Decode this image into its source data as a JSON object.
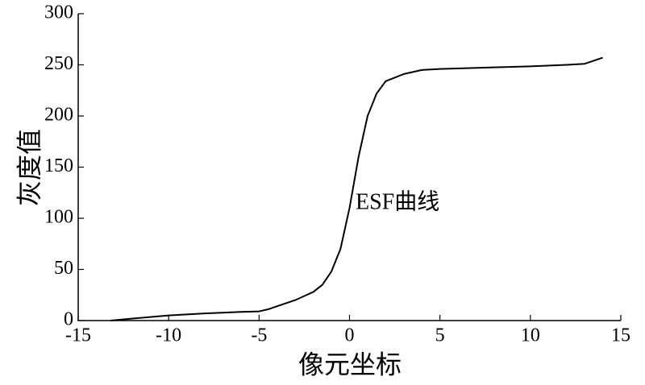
{
  "chart_data": {
    "type": "line",
    "xlabel": "像元坐标",
    "ylabel": "灰度值",
    "annotation": "ESF曲线",
    "x": [
      -13.2,
      -12,
      -10,
      -8,
      -6,
      -5,
      -4.5,
      -4,
      -3,
      -2,
      -1.5,
      -1,
      -0.5,
      0,
      0.5,
      1,
      1.5,
      2,
      3,
      4,
      5,
      8,
      10,
      12,
      13,
      14
    ],
    "series": [
      {
        "color": "#000000",
        "values": [
          0,
          2,
          5,
          7,
          8.5,
          9,
          11,
          14,
          20,
          28,
          35,
          48,
          70,
          110,
          160,
          200,
          222,
          234,
          241,
          245,
          246,
          247.5,
          248.5,
          250,
          251,
          257
        ]
      }
    ],
    "xlim": [
      -15,
      15
    ],
    "xticks": [
      -15,
      -10,
      -5,
      0,
      5,
      10,
      15
    ],
    "ylim": [
      0,
      300
    ],
    "yticks": [
      0,
      50,
      100,
      150,
      200,
      250,
      300
    ]
  }
}
